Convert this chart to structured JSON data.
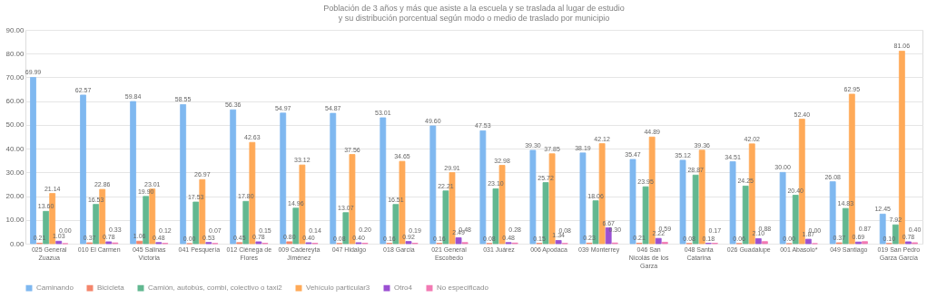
{
  "chart_data": {
    "type": "bar",
    "title": "Población de 3 años y más que asiste a la escuela y se traslada al lugar de estudio",
    "subtitle": "y su distribución porcentual según modo o medio de traslado por municipio",
    "categories": [
      "025 General Zuazua",
      "010 El Carmen",
      "045 Salinas Victoria",
      "041 Pesquería",
      "012 Ciénega de Flores",
      "009 Cadereyta Jiménez",
      "047 Hidalgo",
      "018 García",
      "021 General Escobedo",
      "031 Juárez",
      "006 Apodaca",
      "039 Monterrey",
      "046 San Nicolás de los Garza",
      "048 Santa Catarina",
      "026 Guadalupe",
      "001 Abasolo*",
      "049 Santiago",
      "019 San Pedro Garza García"
    ],
    "series": [
      {
        "name": "Caminando",
        "color": "#7fb8f0",
        "values": [
          69.99,
          62.57,
          59.84,
          58.55,
          56.36,
          54.97,
          54.87,
          53.01,
          49.6,
          47.53,
          39.3,
          38.19,
          35.47,
          35.12,
          34.51,
          30.0,
          26.08,
          12.45
        ],
        "value_labels": [
          "69.99",
          "62.57",
          "59.84",
          "58.55",
          "56.36",
          "54.97",
          "54.87",
          "53.01",
          "49.60",
          "47.53",
          "39.30",
          "38.19",
          "35.47",
          "35.12",
          "34.51",
          "30.00",
          "26.08",
          "12.45"
        ]
      },
      {
        "name": "Bicicleta",
        "color": "#f4866c",
        "values": [
          0.21,
          0.37,
          1.06,
          0.0,
          0.45,
          0.8,
          0.08,
          0.16,
          0.16,
          0.08,
          0.15,
          0.23,
          0.21,
          0.08,
          0.06,
          0.0,
          0.37,
          0.1
        ],
        "value_labels": [
          "0.21",
          "0.37",
          "1.06",
          "0.00",
          "0.45",
          "0.80",
          "0.08",
          "0.16",
          "0.16",
          "0.08",
          "0.15",
          "0.23",
          "0.21",
          "0.08",
          "0.06",
          "0.00",
          "0.37",
          "0.10"
        ]
      },
      {
        "name": "Camión, autobús, combi, colectivo o taxi2",
        "color": "#62b891",
        "values": [
          13.6,
          16.53,
          19.9,
          17.53,
          17.8,
          14.96,
          13.07,
          16.51,
          22.21,
          23.1,
          25.72,
          18.06,
          23.95,
          28.87,
          24.25,
          20.4,
          14.83,
          7.92
        ],
        "value_labels": [
          "13.60",
          "16.53",
          "19.90",
          "17.53",
          "17.80",
          "14.96",
          "13.07",
          "16.51",
          "22.21",
          "23.10",
          "25.72",
          "18.06",
          "23.95",
          "28.87",
          "24.25",
          "20.40",
          "14.83",
          "7.92"
        ]
      },
      {
        "name": "Vehículo particular3",
        "color": "#ffaa58",
        "values": [
          21.14,
          22.86,
          23.01,
          26.97,
          42.63,
          33.12,
          37.56,
          34.65,
          29.91,
          32.98,
          37.85,
          42.12,
          44.89,
          39.36,
          42.02,
          52.4,
          62.95,
          81.06
        ],
        "value_labels": [
          "21.14",
          "22.86",
          "23.01",
          "26.97",
          "42.63",
          "33.12",
          "37.56",
          "34.65",
          "29.91",
          "32.98",
          "37.85",
          "42.12",
          "44.89",
          "39.36",
          "42.02",
          "52.40",
          "62.95",
          "81.06"
        ]
      },
      {
        "name": "Otro4",
        "color": "#9b50d2",
        "values": [
          1.03,
          0.78,
          0.48,
          0.53,
          0.78,
          0.4,
          0.4,
          0.92,
          2.49,
          0.48,
          1.34,
          6.67,
          2.22,
          0.18,
          2.1,
          1.87,
          0.69,
          0.78
        ],
        "value_labels": [
          "1.03",
          "0.78",
          "0.48",
          "0.53",
          "0.78",
          "0.40",
          "0.40",
          "0.92",
          "2.49",
          "0.48",
          "1.34",
          "6.67",
          "2.22",
          "0.18",
          "2.10",
          "1.87",
          "0.69",
          "0.78"
        ]
      },
      {
        "name": "No especificado",
        "color": "#f27ab4",
        "values": [
          0.0,
          0.33,
          0.12,
          0.07,
          0.15,
          0.14,
          0.2,
          0.19,
          0.48,
          0.28,
          0.08,
          0.3,
          0.59,
          0.17,
          0.88,
          0.0,
          0.87,
          0.4
        ],
        "value_labels": [
          "0.00",
          "0.33",
          "0.12",
          "0.07",
          "0.15",
          "0.14",
          "0.20",
          "0.19",
          "0.48",
          "0.28",
          "0.08",
          "0.30",
          "0.59",
          "0.17",
          "0.88",
          "0.00",
          "0.87",
          "0.40"
        ]
      }
    ],
    "ylim": [
      0,
      90
    ],
    "yticks": [
      {
        "value": 0,
        "label": "0.00"
      },
      {
        "value": 10,
        "label": "10.00"
      },
      {
        "value": 20,
        "label": "20.00"
      },
      {
        "value": 30,
        "label": "30.00"
      },
      {
        "value": 40,
        "label": "40.00"
      },
      {
        "value": 50,
        "label": "50.00"
      },
      {
        "value": 60,
        "label": "60.00"
      },
      {
        "value": 70,
        "label": "70.00"
      },
      {
        "value": 80,
        "label": "80.00"
      },
      {
        "value": 90,
        "label": "90.00"
      }
    ],
    "grid": "y",
    "legend": "bottom",
    "data_labels": true
  }
}
